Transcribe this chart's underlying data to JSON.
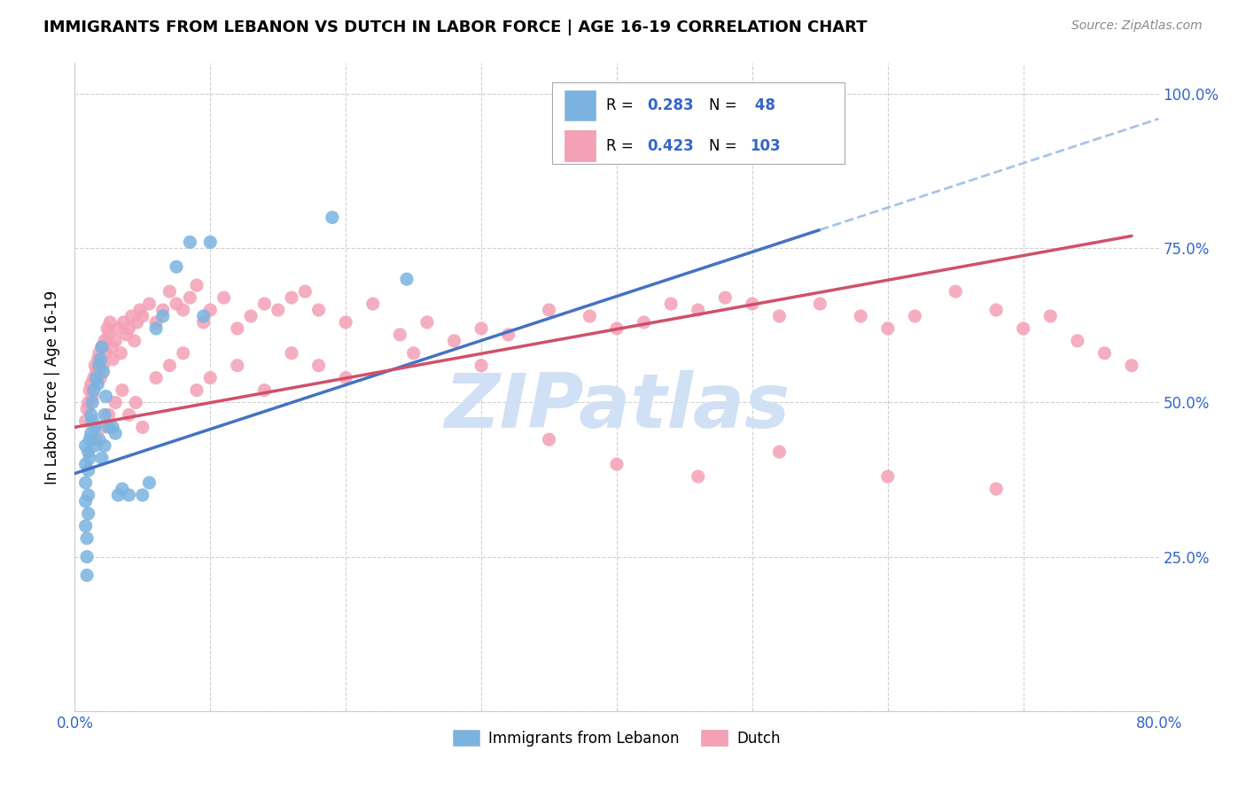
{
  "title": "IMMIGRANTS FROM LEBANON VS DUTCH IN LABOR FORCE | AGE 16-19 CORRELATION CHART",
  "source": "Source: ZipAtlas.com",
  "ylabel": "In Labor Force | Age 16-19",
  "xlim": [
    0.0,
    0.8
  ],
  "ylim": [
    0.0,
    1.05
  ],
  "ytick_positions": [
    0.0,
    0.25,
    0.5,
    0.75,
    1.0
  ],
  "ytick_labels": [
    "",
    "25.0%",
    "50.0%",
    "75.0%",
    "100.0%"
  ],
  "color_lebanon": "#7ab3e0",
  "color_dutch": "#f4a0b5",
  "color_trend_lebanon": "#4472c4",
  "color_trend_dutch": "#d0506a",
  "color_trend_dashed": "#a8c4e8",
  "watermark": "ZIPatlas",
  "watermark_color": "#d0e0f5",
  "scatter_lebanon_x": [
    0.008,
    0.008,
    0.008,
    0.008,
    0.008,
    0.009,
    0.009,
    0.009,
    0.01,
    0.01,
    0.01,
    0.01,
    0.011,
    0.011,
    0.012,
    0.012,
    0.013,
    0.013,
    0.014,
    0.015,
    0.015,
    0.016,
    0.017,
    0.018,
    0.018,
    0.019,
    0.02,
    0.02,
    0.021,
    0.022,
    0.022,
    0.023,
    0.025,
    0.028,
    0.03,
    0.032,
    0.035,
    0.04,
    0.05,
    0.055,
    0.06,
    0.065,
    0.075,
    0.085,
    0.095,
    0.1,
    0.19,
    0.245
  ],
  "scatter_lebanon_y": [
    0.43,
    0.4,
    0.37,
    0.34,
    0.3,
    0.28,
    0.25,
    0.22,
    0.42,
    0.39,
    0.35,
    0.32,
    0.44,
    0.41,
    0.48,
    0.45,
    0.5,
    0.47,
    0.52,
    0.46,
    0.43,
    0.54,
    0.53,
    0.56,
    0.44,
    0.57,
    0.59,
    0.41,
    0.55,
    0.48,
    0.43,
    0.51,
    0.46,
    0.46,
    0.45,
    0.35,
    0.36,
    0.35,
    0.35,
    0.37,
    0.62,
    0.64,
    0.72,
    0.76,
    0.64,
    0.76,
    0.8,
    0.7
  ],
  "scatter_dutch_x": [
    0.008,
    0.009,
    0.01,
    0.011,
    0.012,
    0.013,
    0.014,
    0.015,
    0.016,
    0.017,
    0.018,
    0.019,
    0.02,
    0.021,
    0.022,
    0.023,
    0.024,
    0.025,
    0.026,
    0.027,
    0.028,
    0.03,
    0.032,
    0.034,
    0.036,
    0.038,
    0.04,
    0.042,
    0.044,
    0.046,
    0.048,
    0.05,
    0.055,
    0.06,
    0.065,
    0.07,
    0.075,
    0.08,
    0.085,
    0.09,
    0.095,
    0.1,
    0.11,
    0.12,
    0.13,
    0.14,
    0.15,
    0.16,
    0.17,
    0.18,
    0.2,
    0.22,
    0.24,
    0.26,
    0.28,
    0.3,
    0.32,
    0.35,
    0.38,
    0.4,
    0.42,
    0.44,
    0.46,
    0.48,
    0.5,
    0.52,
    0.55,
    0.58,
    0.6,
    0.62,
    0.65,
    0.68,
    0.7,
    0.72,
    0.74,
    0.76,
    0.78,
    0.015,
    0.02,
    0.025,
    0.03,
    0.035,
    0.04,
    0.045,
    0.05,
    0.06,
    0.07,
    0.08,
    0.09,
    0.1,
    0.12,
    0.14,
    0.16,
    0.18,
    0.2,
    0.25,
    0.3,
    0.35,
    0.4,
    0.46,
    0.52,
    0.6,
    0.68
  ],
  "scatter_dutch_y": [
    0.47,
    0.49,
    0.5,
    0.52,
    0.53,
    0.51,
    0.54,
    0.56,
    0.55,
    0.57,
    0.58,
    0.54,
    0.59,
    0.56,
    0.6,
    0.58,
    0.62,
    0.61,
    0.63,
    0.59,
    0.57,
    0.6,
    0.62,
    0.58,
    0.63,
    0.61,
    0.62,
    0.64,
    0.6,
    0.63,
    0.65,
    0.64,
    0.66,
    0.63,
    0.65,
    0.68,
    0.66,
    0.65,
    0.67,
    0.69,
    0.63,
    0.65,
    0.67,
    0.62,
    0.64,
    0.66,
    0.65,
    0.67,
    0.68,
    0.65,
    0.63,
    0.66,
    0.61,
    0.63,
    0.6,
    0.62,
    0.61,
    0.65,
    0.64,
    0.62,
    0.63,
    0.66,
    0.65,
    0.67,
    0.66,
    0.64,
    0.66,
    0.64,
    0.62,
    0.64,
    0.68,
    0.65,
    0.62,
    0.64,
    0.6,
    0.58,
    0.56,
    0.44,
    0.46,
    0.48,
    0.5,
    0.52,
    0.48,
    0.5,
    0.46,
    0.54,
    0.56,
    0.58,
    0.52,
    0.54,
    0.56,
    0.52,
    0.58,
    0.56,
    0.54,
    0.58,
    0.56,
    0.44,
    0.4,
    0.38,
    0.42,
    0.38,
    0.36
  ],
  "trend_leb_x0": 0.0,
  "trend_leb_y0": 0.385,
  "trend_leb_x1": 0.55,
  "trend_leb_y1": 0.78,
  "trend_dutch_x0": 0.0,
  "trend_dutch_y0": 0.46,
  "trend_dutch_x1": 0.78,
  "trend_dutch_y1": 0.77,
  "trend_dash_x0": 0.55,
  "trend_dash_y0": 0.78,
  "trend_dash_x1": 0.8,
  "trend_dash_y1": 0.96
}
